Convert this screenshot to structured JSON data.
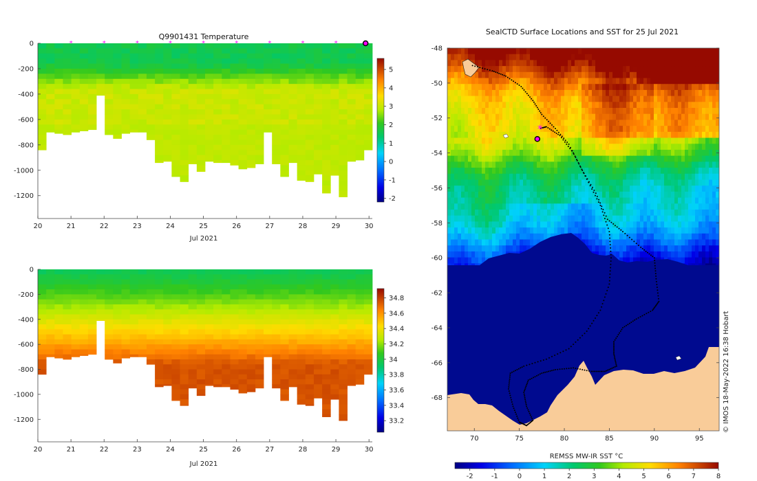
{
  "figure": {
    "credit": "© IMOS 18-May-2022 16:38 Hobart"
  },
  "chart_data": [
    {
      "id": "temperature-section",
      "type": "heatmap",
      "title": "Q9901431  Temperature",
      "xlabel": "Jul 2021",
      "x_ticks": [
        "20",
        "21",
        "22",
        "23",
        "24",
        "25",
        "26",
        "27",
        "28",
        "29",
        "30"
      ],
      "x_range": [
        20,
        30.1
      ],
      "y_ticks": [
        "0",
        "-200",
        "-400",
        "-600",
        "-800",
        "-1000",
        "-1200"
      ],
      "y_range": [
        -1380,
        0
      ],
      "colorbar_ticks": [
        "5",
        "4",
        "3",
        "2",
        "1",
        "0",
        "-1",
        "-2"
      ],
      "colorbar_range": [
        -2.2,
        5.6
      ],
      "markers_days": [
        21,
        22,
        23,
        24,
        25,
        26,
        27,
        28,
        29
      ],
      "current_day": 30,
      "profile_depths": [
        840,
        700,
        710,
        720,
        700,
        690,
        680,
        410,
        720,
        750,
        710,
        700,
        700,
        760,
        940,
        930,
        1050,
        1090,
        950,
        1010,
        930,
        940,
        940,
        960,
        990,
        980,
        950,
        700,
        950,
        1050,
        940,
        1080,
        1090,
        1030,
        1180,
        1040,
        1210,
        930,
        920,
        840
      ],
      "surface_value": 1.6,
      "deep_value": 3.0
    },
    {
      "id": "salinity-section",
      "type": "heatmap",
      "title": "",
      "xlabel": "Jul 2021",
      "x_ticks": [
        "20",
        "21",
        "22",
        "23",
        "24",
        "25",
        "26",
        "27",
        "28",
        "29",
        "30"
      ],
      "x_range": [
        20,
        30.1
      ],
      "y_ticks": [
        "0",
        "-200",
        "-400",
        "-600",
        "-800",
        "-1000",
        "-1200"
      ],
      "y_range": [
        -1380,
        0
      ],
      "colorbar_ticks": [
        "34.8",
        "34.6",
        "34.4",
        "34.2",
        "34",
        "33.8",
        "33.6",
        "33.4",
        "33.2"
      ],
      "colorbar_range": [
        33.05,
        34.92
      ],
      "profile_depths": [
        840,
        700,
        710,
        720,
        700,
        690,
        680,
        410,
        720,
        750,
        710,
        700,
        700,
        760,
        940,
        930,
        1050,
        1090,
        950,
        1010,
        930,
        940,
        940,
        960,
        990,
        980,
        950,
        700,
        950,
        1050,
        940,
        1080,
        1090,
        1030,
        1180,
        1040,
        1210,
        930,
        920,
        840
      ],
      "surface_value": 33.95,
      "deep_value": 34.75
    },
    {
      "id": "sst-map",
      "type": "heatmap",
      "title": "SealCTD Surface Locations and SST for 25 Jul 2021",
      "x_ticks": [
        "70",
        "75",
        "80",
        "85",
        "90",
        "95"
      ],
      "x_range": [
        67.0,
        97.2
      ],
      "y_ticks": [
        "-48",
        "-50",
        "-52",
        "-54",
        "-56",
        "-58",
        "-60",
        "-62",
        "-64",
        "-66",
        "-68"
      ],
      "y_range": [
        -69.9,
        -48
      ],
      "colorbar_label": "REMSS MW-IR SST °C",
      "colorbar_ticks": [
        "-2",
        "-1",
        "0",
        "1",
        "2",
        "3",
        "4",
        "5",
        "6",
        "7",
        "8"
      ],
      "colorbar_range": [
        -2.6,
        8
      ],
      "seal_current_position": {
        "lon": 77.3,
        "lat": -52.6
      },
      "deployment_position": {
        "lon": 77.0,
        "lat": -53.2
      },
      "track": [
        [
          69.8,
          -49.0
        ],
        [
          72.0,
          -49.3
        ],
        [
          73.5,
          -49.6
        ],
        [
          75.2,
          -50.2
        ],
        [
          76.5,
          -51.0
        ],
        [
          77.5,
          -51.8
        ],
        [
          79.0,
          -52.6
        ],
        [
          80.5,
          -53.5
        ],
        [
          82.0,
          -55.0
        ],
        [
          83.5,
          -56.3
        ],
        [
          84.8,
          -57.8
        ],
        [
          86.5,
          -58.5
        ],
        [
          88.5,
          -59.4
        ],
        [
          90.0,
          -60.0
        ],
        [
          90.2,
          -61.2
        ],
        [
          90.5,
          -62.5
        ],
        [
          89.8,
          -63.0
        ],
        [
          88.0,
          -63.5
        ],
        [
          86.5,
          -64.0
        ],
        [
          85.5,
          -64.8
        ],
        [
          85.5,
          -65.5
        ],
        [
          85.8,
          -66.2
        ],
        [
          84.5,
          -66.5
        ],
        [
          83.0,
          -66.5
        ],
        [
          81.0,
          -66.3
        ],
        [
          79.0,
          -66.4
        ],
        [
          77.5,
          -66.6
        ],
        [
          76.0,
          -67.0
        ],
        [
          75.5,
          -67.7
        ],
        [
          75.8,
          -68.5
        ],
        [
          76.5,
          -69.3
        ],
        [
          75.8,
          -69.6
        ],
        [
          75.0,
          -69.4
        ],
        [
          74.3,
          -68.5
        ],
        [
          73.8,
          -67.5
        ],
        [
          74.0,
          -66.6
        ],
        [
          75.5,
          -66.2
        ],
        [
          78.0,
          -65.8
        ],
        [
          80.5,
          -65.2
        ],
        [
          82.5,
          -64.2
        ],
        [
          84.0,
          -63.0
        ],
        [
          85.0,
          -61.5
        ],
        [
          85.2,
          -60.0
        ],
        [
          85.0,
          -58.5
        ],
        [
          84.0,
          -57.0
        ],
        [
          82.5,
          -55.5
        ],
        [
          81.0,
          -54.0
        ],
        [
          79.5,
          -53.0
        ],
        [
          78.0,
          -52.5
        ],
        [
          77.3,
          -52.6
        ]
      ]
    }
  ]
}
